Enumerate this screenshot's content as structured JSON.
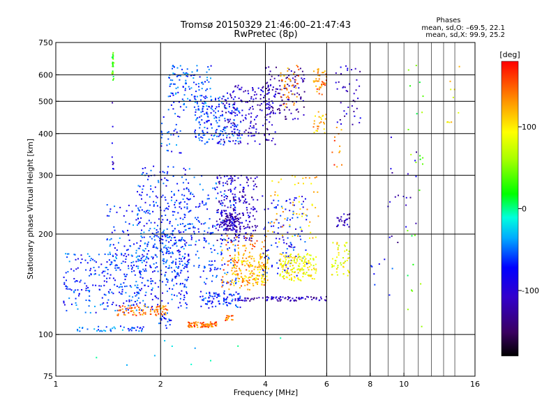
{
  "header": {
    "title_line1": "Tromsø 20150329 21:46:00–21:47:43",
    "title_line2": "RwPretec (8p)",
    "stats_heading": "Phases",
    "stats_line1": "mean, sd,O: –69.5, 22.1",
    "stats_line2": "mean, sd,X:  99.9, 25.2"
  },
  "chart_data": {
    "type": "scatter",
    "title": "Tromsø 20150329 21:46:00–21:47:43",
    "subtitle": "RwPretec (8p)",
    "xlabel": "Frequency [MHz]",
    "ylabel": "Stationary phase Virtual Height [km]",
    "xscale": "log",
    "yscale": "log",
    "xlim": [
      1,
      16
    ],
    "ylim": [
      75,
      750
    ],
    "x_ticks": [
      1,
      2,
      4,
      6,
      8,
      10,
      16
    ],
    "x_tick_labels": [
      "1",
      "2",
      "4",
      "6",
      "8",
      "10",
      "16"
    ],
    "x_major_gridlines": [
      2,
      4,
      6,
      8
    ],
    "x_minor_gridlines": [
      7,
      9,
      10,
      11,
      12,
      13,
      14
    ],
    "y_ticks": [
      75,
      100,
      200,
      300,
      400,
      500,
      600,
      750
    ],
    "y_tick_labels": [
      "75",
      "100",
      "200",
      "300",
      "400",
      "500",
      "600",
      "750"
    ],
    "y_gridlines": [
      100,
      200,
      300,
      400,
      500,
      600
    ],
    "grid": true,
    "colorbar": {
      "label": "[deg]",
      "range": [
        -180,
        180
      ],
      "ticks": [
        100,
        0,
        -100
      ],
      "tick_labels": [
        "100",
        "0",
        "-100"
      ],
      "colormap": "rainbow (black→purple→blue→cyan→green→yellow→orange→red)"
    },
    "series": [
      {
        "type": "cluster",
        "xr": [
          1.45,
          1.47
        ],
        "yr": [
          575,
          700
        ],
        "phase": 25,
        "n": 24
      },
      {
        "type": "cluster",
        "xr": [
          1.45,
          1.47
        ],
        "yr": [
          270,
          520
        ],
        "phase": -110,
        "n": 10
      },
      {
        "type": "cluster",
        "xr": [
          1.05,
          1.9
        ],
        "yr": [
          115,
          175
        ],
        "phase": -70,
        "n": 260
      },
      {
        "type": "cluster",
        "xr": [
          1.4,
          2.2
        ],
        "yr": [
          155,
          245
        ],
        "phase": -65,
        "n": 160
      },
      {
        "type": "cluster",
        "xr": [
          1.7,
          2.45
        ],
        "yr": [
          140,
          320
        ],
        "phase": -70,
        "n": 230
      },
      {
        "type": "cluster",
        "xr": [
          1.9,
          2.4
        ],
        "yr": [
          120,
          200
        ],
        "phase": -75,
        "n": 110
      },
      {
        "type": "cluster",
        "xr": [
          2.0,
          2.3
        ],
        "yr": [
          350,
          460
        ],
        "phase": -70,
        "n": 30
      },
      {
        "type": "cluster",
        "xr": [
          1.5,
          2.1
        ],
        "yr": [
          114,
          122
        ],
        "phase": 140,
        "n": 90
      },
      {
        "type": "cluster",
        "xr": [
          2.4,
          2.9
        ],
        "yr": [
          105,
          109
        ],
        "phase": 145,
        "n": 75
      },
      {
        "type": "cluster",
        "xr": [
          3.05,
          3.25
        ],
        "yr": [
          110,
          114
        ],
        "phase": 145,
        "n": 15
      },
      {
        "type": "cluster",
        "xr": [
          1.15,
          1.8
        ],
        "yr": [
          102,
          106
        ],
        "phase": -60,
        "n": 45
      },
      {
        "type": "cluster",
        "xr": [
          1.95,
          2.15
        ],
        "yr": [
          104,
          116
        ],
        "phase": -70,
        "n": 20
      },
      {
        "type": "cluster",
        "xr": [
          2.3,
          3.3
        ],
        "yr": [
          140,
          300
        ],
        "phase": -70,
        "n": 220
      },
      {
        "type": "cluster",
        "xr": [
          2.6,
          3.4
        ],
        "yr": [
          120,
          135
        ],
        "phase": -75,
        "n": 90
      },
      {
        "type": "cluster",
        "xr": [
          2.9,
          3.8
        ],
        "yr": [
          190,
          300
        ],
        "phase": -110,
        "n": 230
      },
      {
        "type": "cluster",
        "xr": [
          3.0,
          3.4
        ],
        "yr": [
          205,
          230
        ],
        "phase": -120,
        "n": 90
      },
      {
        "type": "cluster",
        "xr": [
          3.0,
          4.0
        ],
        "yr": [
          136,
          200
        ],
        "phase": 140,
        "n": 110
      },
      {
        "type": "cluster",
        "xr": [
          3.2,
          4.1
        ],
        "yr": [
          140,
          175
        ],
        "phase": 110,
        "n": 140
      },
      {
        "type": "cluster",
        "xr": [
          3.9,
          5.3
        ],
        "yr": [
          150,
          260
        ],
        "phase": -80,
        "n": 120
      },
      {
        "type": "cluster",
        "xr": [
          4.4,
          5.6
        ],
        "yr": [
          145,
          175
        ],
        "phase": 90,
        "n": 160
      },
      {
        "type": "cluster",
        "xr": [
          4.0,
          5.7
        ],
        "yr": [
          185,
          300
        ],
        "phase": 110,
        "n": 60
      },
      {
        "type": "cluster",
        "xr": [
          3.3,
          6.0
        ],
        "yr": [
          126,
          130
        ],
        "phase": -115,
        "n": 80
      },
      {
        "type": "cluster",
        "xr": [
          6.2,
          7.0
        ],
        "yr": [
          150,
          190
        ],
        "phase": 85,
        "n": 50
      },
      {
        "type": "cluster",
        "xr": [
          6.4,
          7.0
        ],
        "yr": [
          210,
          230
        ],
        "phase": -115,
        "n": 25
      },
      {
        "type": "cluster",
        "xr": [
          5.5,
          6.0
        ],
        "yr": [
          400,
          470
        ],
        "phase": 120,
        "n": 25
      },
      {
        "type": "cluster",
        "xr": [
          2.1,
          2.8
        ],
        "yr": [
          470,
          640
        ],
        "phase": -60,
        "n": 120
      },
      {
        "type": "cluster",
        "xr": [
          2.5,
          3.4
        ],
        "yr": [
          370,
          520
        ],
        "phase": -70,
        "n": 200
      },
      {
        "type": "cluster",
        "xr": [
          3.0,
          4.3
        ],
        "yr": [
          370,
          560
        ],
        "phase": -110,
        "n": 180
      },
      {
        "type": "cluster",
        "xr": [
          4.0,
          5.2
        ],
        "yr": [
          440,
          640
        ],
        "phase": -120,
        "n": 110
      },
      {
        "type": "cluster",
        "xr": [
          4.4,
          5.0
        ],
        "yr": [
          480,
          640
        ],
        "phase": 130,
        "n": 45
      },
      {
        "type": "cluster",
        "xr": [
          5.5,
          6.0
        ],
        "yr": [
          520,
          640
        ],
        "phase": 140,
        "n": 40
      },
      {
        "type": "cluster",
        "xr": [
          6.3,
          7.5
        ],
        "yr": [
          420,
          640
        ],
        "phase": -110,
        "n": 40
      },
      {
        "type": "cluster",
        "xr": [
          6.2,
          6.7
        ],
        "yr": [
          300,
          440
        ],
        "phase": 140,
        "n": 12
      },
      {
        "type": "cluster",
        "xr": [
          10.2,
          11.5
        ],
        "yr": [
          100,
          650
        ],
        "phase": 30,
        "n": 25
      },
      {
        "type": "cluster",
        "xr": [
          9.0,
          11.0
        ],
        "yr": [
          160,
          420
        ],
        "phase": -110,
        "n": 20
      },
      {
        "type": "cluster",
        "xr": [
          13.0,
          14.5
        ],
        "yr": [
          400,
          650
        ],
        "phase": 100,
        "n": 10
      },
      {
        "type": "cluster",
        "xr": [
          8.0,
          9.5
        ],
        "yr": [
          130,
          180
        ],
        "phase": -80,
        "n": 8
      },
      {
        "type": "cluster",
        "xr": [
          1.3,
          6.0
        ],
        "yr": [
          78,
          100
        ],
        "phase": -20,
        "n": 10
      }
    ]
  }
}
